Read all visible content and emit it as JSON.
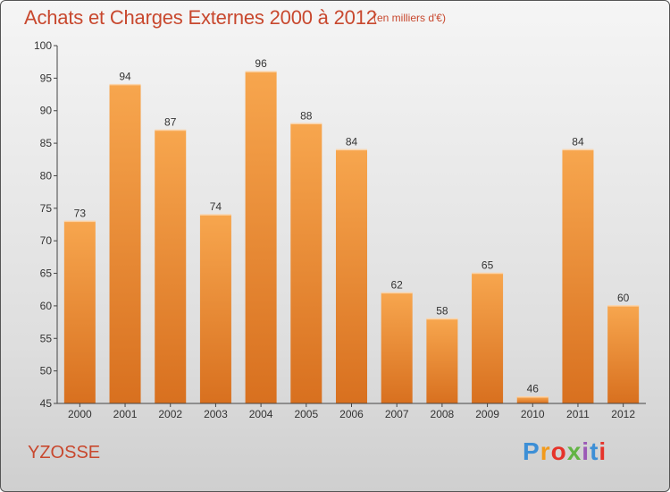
{
  "header": {
    "title": "Achats et Charges Externes 2000 à 2012",
    "subtitle": "(en milliers d'€)"
  },
  "footer": {
    "commune": "YZOSSE",
    "logo_text": "Proxiti",
    "logo_colors": [
      "#3d8fd6",
      "#f29a1c",
      "#e6332a",
      "#62b444",
      "#9b59b6",
      "#3d8fd6",
      "#e6332a"
    ]
  },
  "colors": {
    "bar_light": "#f7a64e",
    "bar_dark": "#d8701f",
    "title": "#c8482e",
    "axis": "#444444"
  },
  "chart_data": {
    "type": "bar",
    "categories": [
      "2000",
      "2001",
      "2002",
      "2003",
      "2004",
      "2005",
      "2006",
      "2007",
      "2008",
      "2009",
      "2010",
      "2011",
      "2012"
    ],
    "values": [
      73,
      94,
      87,
      74,
      96,
      88,
      84,
      62,
      58,
      65,
      46,
      84,
      60
    ],
    "ylim": [
      45,
      100
    ],
    "yticks": [
      45,
      50,
      55,
      60,
      65,
      70,
      75,
      80,
      85,
      90,
      95,
      100
    ],
    "grid": false,
    "xlabel": "",
    "ylabel": ""
  }
}
